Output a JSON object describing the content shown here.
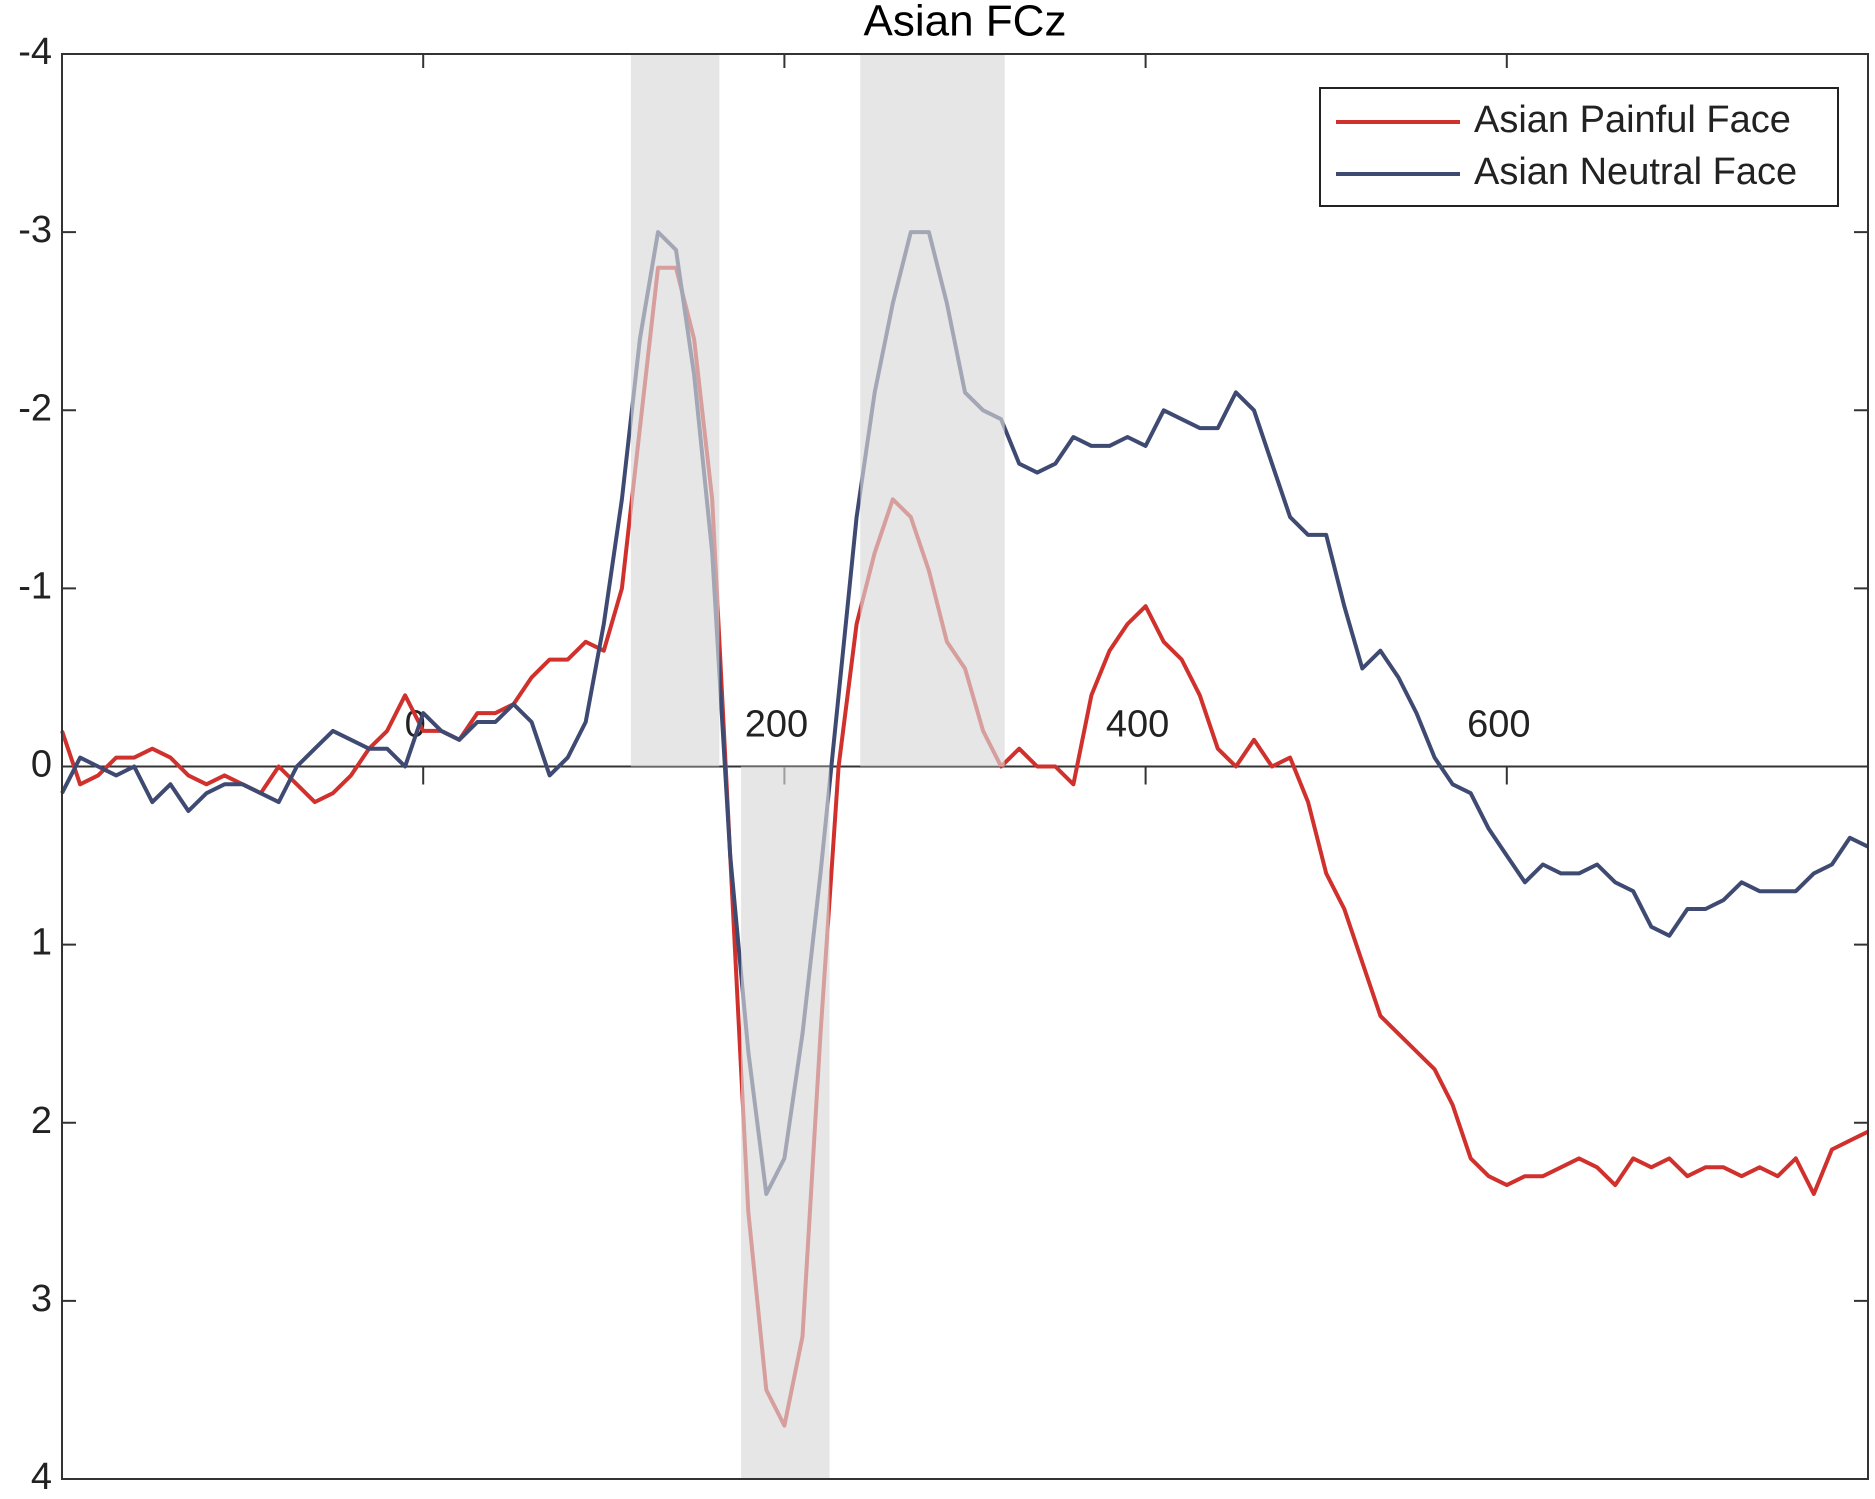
{
  "chart_data": {
    "type": "line",
    "title": "Asian FCz",
    "x": [
      -200,
      -190,
      -180,
      -170,
      -160,
      -150,
      -140,
      -130,
      -120,
      -110,
      -100,
      -90,
      -80,
      -70,
      -60,
      -50,
      -40,
      -30,
      -20,
      -10,
      0,
      10,
      20,
      30,
      40,
      50,
      60,
      70,
      80,
      90,
      100,
      110,
      120,
      130,
      140,
      150,
      160,
      170,
      180,
      190,
      200,
      210,
      220,
      230,
      240,
      250,
      260,
      270,
      280,
      290,
      300,
      310,
      320,
      330,
      340,
      350,
      360,
      370,
      380,
      390,
      400,
      410,
      420,
      430,
      440,
      450,
      460,
      470,
      480,
      490,
      500,
      510,
      520,
      530,
      540,
      550,
      560,
      570,
      580,
      590,
      600,
      610,
      620,
      630,
      640,
      650,
      660,
      670,
      680,
      690,
      700,
      710,
      720,
      730,
      740,
      750,
      760,
      770,
      780,
      790,
      800
    ],
    "series": [
      {
        "name": "Asian Painful Face",
        "color": "#d0312d",
        "values": [
          -0.2,
          0.1,
          0.05,
          -0.05,
          -0.05,
          -0.1,
          -0.05,
          0.05,
          0.1,
          0.05,
          0.1,
          0.15,
          0.0,
          0.1,
          0.2,
          0.15,
          0.05,
          -0.1,
          -0.2,
          -0.4,
          -0.2,
          -0.2,
          -0.15,
          -0.3,
          -0.3,
          -0.35,
          -0.5,
          -0.6,
          -0.6,
          -0.7,
          -0.65,
          -1.0,
          -1.9,
          -2.8,
          -2.8,
          -2.4,
          -1.5,
          0.5,
          2.5,
          3.5,
          3.7,
          3.2,
          1.5,
          0.0,
          -0.8,
          -1.2,
          -1.5,
          -1.4,
          -1.1,
          -0.7,
          -0.55,
          -0.2,
          0.0,
          -0.1,
          0.0,
          0.0,
          0.1,
          -0.4,
          -0.65,
          -0.8,
          -0.9,
          -0.7,
          -0.6,
          -0.4,
          -0.1,
          0.0,
          -0.15,
          0.0,
          -0.05,
          0.2,
          0.6,
          0.8,
          1.1,
          1.4,
          1.5,
          1.6,
          1.7,
          1.9,
          2.2,
          2.3,
          2.35,
          2.3,
          2.3,
          2.25,
          2.2,
          2.25,
          2.35,
          2.2,
          2.25,
          2.2,
          2.3,
          2.25,
          2.25,
          2.3,
          2.25,
          2.3,
          2.2,
          2.4,
          2.15,
          2.1,
          2.05
        ]
      },
      {
        "name": "Asian Neutral Face",
        "color": "#3f4a72",
        "values": [
          0.15,
          -0.05,
          0.0,
          0.05,
          0.0,
          0.2,
          0.1,
          0.25,
          0.15,
          0.1,
          0.1,
          0.15,
          0.2,
          0.0,
          -0.1,
          -0.2,
          -0.15,
          -0.1,
          -0.1,
          0.0,
          -0.3,
          -0.2,
          -0.15,
          -0.25,
          -0.25,
          -0.35,
          -0.25,
          0.05,
          -0.05,
          -0.25,
          -0.8,
          -1.5,
          -2.4,
          -3.0,
          -2.9,
          -2.2,
          -1.2,
          0.5,
          1.6,
          2.4,
          2.2,
          1.5,
          0.6,
          -0.4,
          -1.4,
          -2.1,
          -2.6,
          -3.0,
          -3.0,
          -2.6,
          -2.1,
          -2.0,
          -1.95,
          -1.7,
          -1.65,
          -1.7,
          -1.85,
          -1.8,
          -1.8,
          -1.85,
          -1.8,
          -2.0,
          -1.95,
          -1.9,
          -1.9,
          -2.1,
          -2.0,
          -1.7,
          -1.4,
          -1.3,
          -1.3,
          -0.9,
          -0.55,
          -0.65,
          -0.5,
          -0.3,
          -0.05,
          0.1,
          0.15,
          0.35,
          0.5,
          0.65,
          0.55,
          0.6,
          0.6,
          0.55,
          0.65,
          0.7,
          0.9,
          0.95,
          0.8,
          0.8,
          0.75,
          0.65,
          0.7,
          0.7,
          0.7,
          0.6,
          0.55,
          0.4,
          0.45
        ]
      }
    ],
    "shaded_regions": [
      {
        "x": [
          115,
          164
        ],
        "y": [
          -4,
          0
        ]
      },
      {
        "x": [
          176,
          225
        ],
        "y": [
          0,
          4
        ]
      },
      {
        "x": [
          242,
          322
        ],
        "y": [
          -4,
          0
        ]
      }
    ],
    "xlim": [
      -200,
      800
    ],
    "xticks": [
      0,
      200,
      400,
      600
    ],
    "ylim": [
      -4,
      4
    ],
    "yticks": [
      -4,
      -3,
      -2,
      -1,
      0,
      1,
      2,
      3,
      4
    ],
    "y_reversed": true,
    "legend": "northeast",
    "grid": false
  }
}
